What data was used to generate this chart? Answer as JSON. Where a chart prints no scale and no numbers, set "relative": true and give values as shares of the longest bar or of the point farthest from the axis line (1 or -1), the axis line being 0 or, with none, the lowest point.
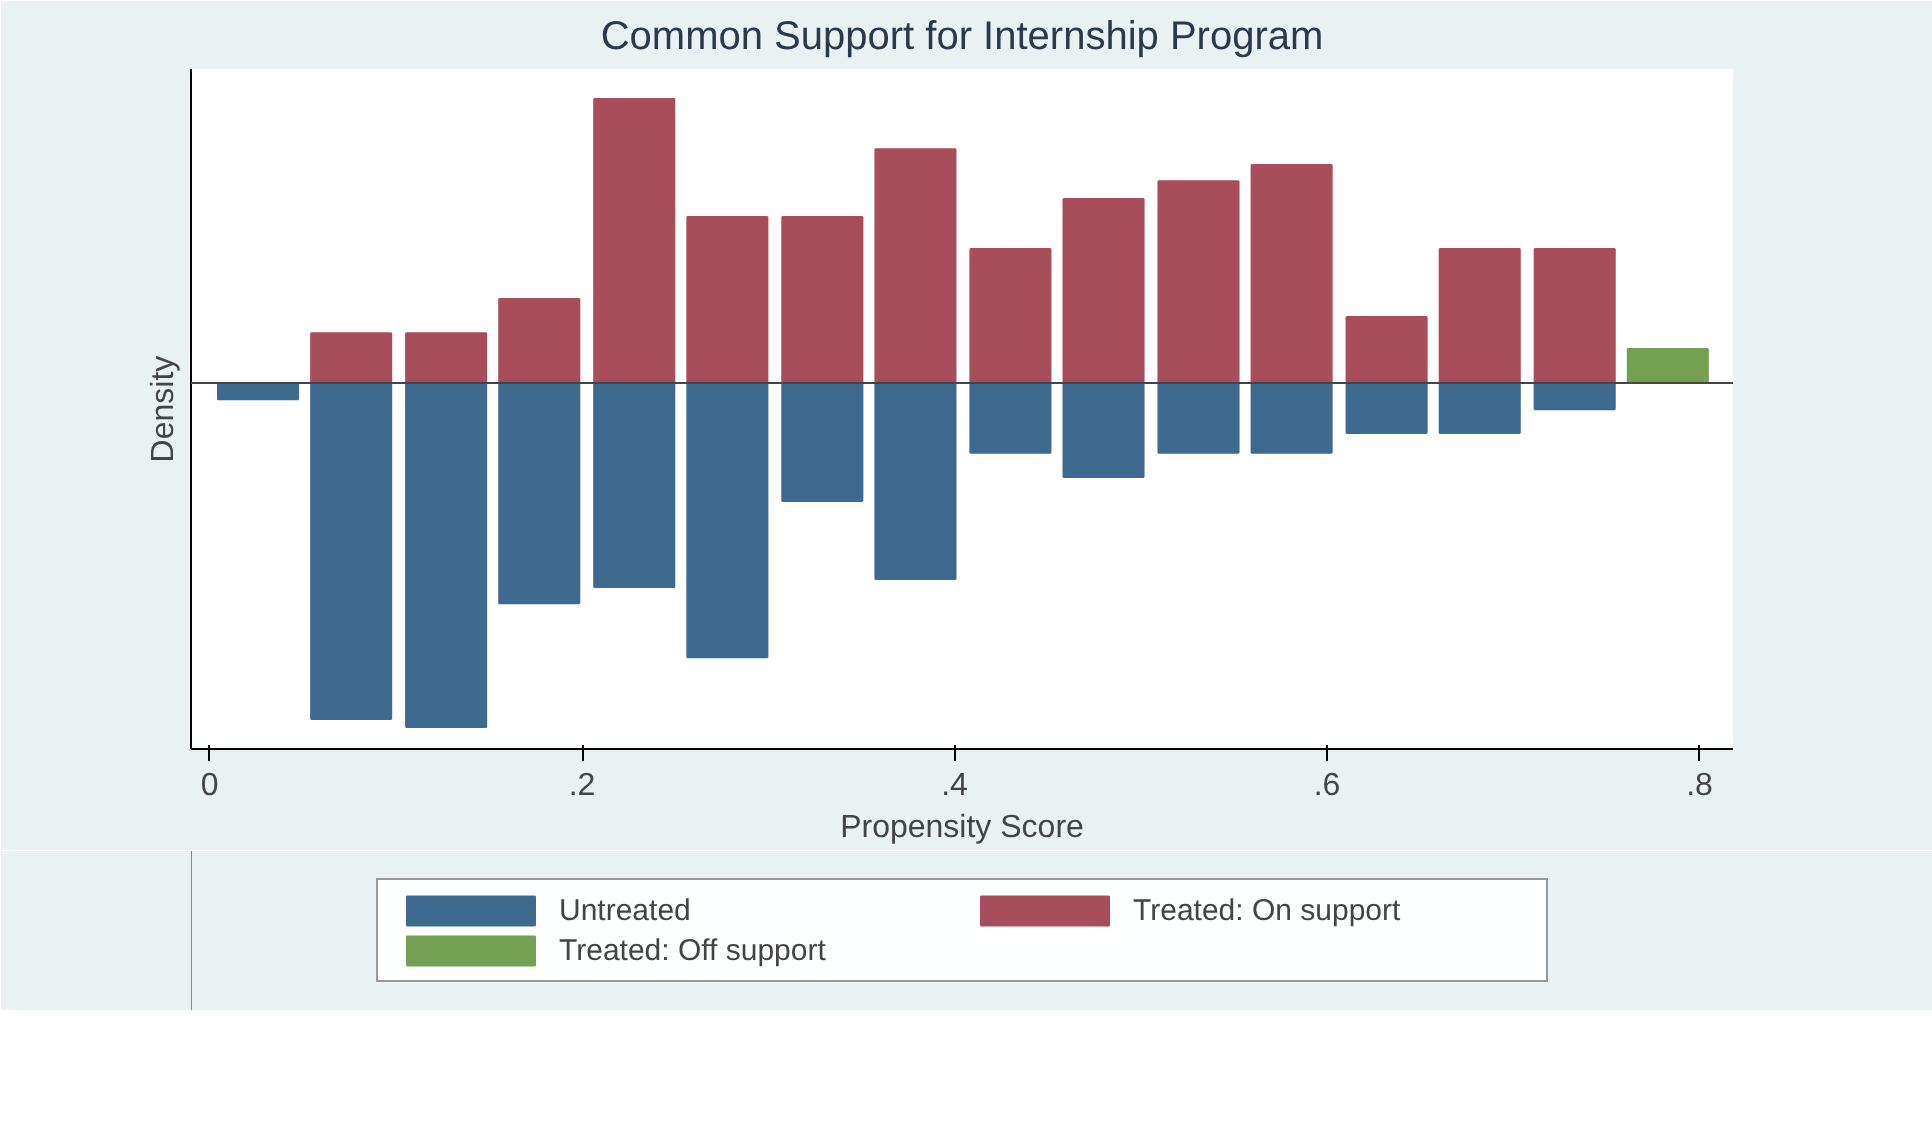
{
  "chart_data": {
    "type": "bar",
    "title": "Common Support for Internship Program",
    "xlabel": "Propensity Score",
    "ylabel": "Density",
    "relative": true,
    "xlim": [
      -0.01,
      0.818
    ],
    "xticks": [
      0,
      {
        "value": 0.2,
        "label": ".2"
      },
      {
        "value": 0.4,
        "label": ".4"
      },
      {
        "value": 0.6,
        "label": ".6"
      },
      {
        "value": 0.8,
        "label": ".8"
      }
    ],
    "series": [
      {
        "name": "Untreated",
        "color": "#3f6a8f",
        "x": [
          0.026,
          0.076,
          0.127,
          0.177,
          0.228,
          0.278,
          0.329,
          0.379,
          0.43,
          0.48,
          0.531,
          0.581,
          0.632,
          0.682,
          0.733
        ],
        "values": [
          -0.047,
          -0.977,
          -1,
          -0.64,
          -0.593,
          -0.797,
          -0.343,
          -0.57,
          -0.203,
          -0.273,
          -0.203,
          -0.203,
          -0.145,
          -0.145,
          -0.076
        ]
      },
      {
        "name": "Treated: On support",
        "color": "#a84e5b",
        "x": [
          0.076,
          0.127,
          0.177,
          0.228,
          0.278,
          0.329,
          0.379,
          0.43,
          0.48,
          0.531,
          0.581,
          0.632,
          0.682,
          0.733
        ],
        "values": [
          0.145,
          0.145,
          0.244,
          0.826,
          0.483,
          0.483,
          0.68,
          0.39,
          0.535,
          0.587,
          0.634,
          0.192,
          0.39,
          0.39
        ]
      },
      {
        "name": "Treated: Off support",
        "color": "#75a052",
        "x": [
          0.783
        ],
        "values": [
          0.099
        ]
      }
    ],
    "grid": false,
    "legend": "bottom"
  }
}
